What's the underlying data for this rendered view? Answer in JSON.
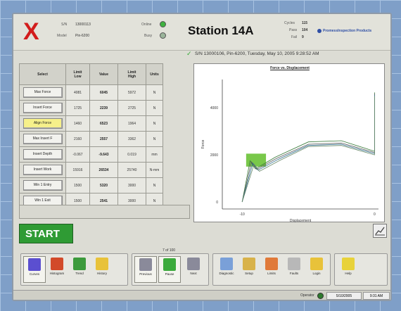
{
  "header": {
    "sn_label": "S/N",
    "sn_value": "13000113",
    "model_label": "Model",
    "model_value": "Pin-6200",
    "online_label": "Online",
    "busy_label": "Busy",
    "station": "Station 14A",
    "cycles_label": "Cycles",
    "cycles_value": "115",
    "pass_label": "Pass",
    "pass_value": "104",
    "fail_label": "Fail",
    "fail_value": "9",
    "brand": "PromessInspection Products"
  },
  "status_line": "S/N 13000106, Pin-6200, Tuesday, May 10, 2005 9:28:52 AM",
  "table": {
    "headers": {
      "select": "Select",
      "limit_low_a": "Limit",
      "limit_low_b": "Low",
      "value": "Value",
      "limit_high_a": "Limit",
      "limit_high_b": "High",
      "units": "Units"
    },
    "rows": [
      {
        "name": "Max Force",
        "low": "4081",
        "value": "6045",
        "high": "5972",
        "units": "N"
      },
      {
        "name": "Insert Force",
        "low": "1725",
        "value": "2239",
        "high": "2725",
        "units": "N"
      },
      {
        "name": "Align Force",
        "low": "1460",
        "value": "6523",
        "high": "1964",
        "units": "N"
      },
      {
        "name": "Max Insert F",
        "low": "2160",
        "value": "2557",
        "high": "3362",
        "units": "N"
      },
      {
        "name": "Insert Depth",
        "low": "-0.067",
        "value": "-9.643",
        "high": "0.019",
        "units": "mm"
      },
      {
        "name": "Insert Work",
        "low": "15916",
        "value": "26534",
        "high": "25740",
        "units": "N-mm"
      },
      {
        "name": "Win 1 Entry",
        "low": "1500",
        "value": "5320",
        "high": "3000",
        "units": "N"
      },
      {
        "name": "Win 1 Exit",
        "low": "1500",
        "value": "2541",
        "high": "3000",
        "units": "N"
      }
    ]
  },
  "chart_data": {
    "type": "line",
    "title": "Force vs. Displacement",
    "xlabel": "Displacement",
    "ylabel": "Force",
    "yticks": [
      "4000",
      "2000",
      "0"
    ],
    "xticks": [
      "-10",
      "0"
    ],
    "series": [
      {
        "points": [
          [
            -10,
            0
          ],
          [
            -9.4,
            1750
          ],
          [
            -9.0,
            1400
          ],
          [
            -7.5,
            1900
          ],
          [
            -5,
            2550
          ],
          [
            -2.5,
            2600
          ],
          [
            0,
            2150
          ],
          [
            0,
            4650
          ]
        ]
      },
      {
        "points": [
          [
            -10,
            0
          ],
          [
            -9.3,
            1700
          ],
          [
            -8.9,
            1380
          ],
          [
            -7.4,
            1850
          ],
          [
            -5,
            2450
          ],
          [
            -2.5,
            2500
          ],
          [
            0,
            2100
          ],
          [
            0,
            4600
          ]
        ]
      },
      {
        "points": [
          [
            -10,
            0
          ],
          [
            -9.2,
            1650
          ],
          [
            -8.8,
            1350
          ],
          [
            -7.3,
            1800
          ],
          [
            -5,
            2400
          ],
          [
            -2.5,
            2450
          ],
          [
            0,
            2050
          ],
          [
            0,
            4550
          ]
        ]
      },
      {
        "points": [
          [
            -10,
            0
          ],
          [
            -9.1,
            1600
          ],
          [
            -8.7,
            1300
          ],
          [
            -7.2,
            1750
          ],
          [
            -5,
            2350
          ],
          [
            -2.5,
            2400
          ],
          [
            0,
            2000
          ],
          [
            0,
            4500
          ]
        ]
      }
    ]
  },
  "start_label": "START",
  "page_indicator": "7 of 100",
  "toolbar": [
    {
      "label": "Curves",
      "icon": "curves-icon",
      "color": "#5b4fd0",
      "active": true
    },
    {
      "label": "Histogram",
      "icon": "histogram-icon",
      "color": "#d24a2a",
      "active": false
    },
    {
      "label": "Trend",
      "icon": "trend-icon",
      "color": "#3c9a3c",
      "active": false
    },
    {
      "label": "History",
      "icon": "history-icon",
      "color": "#e8c23a",
      "active": false
    },
    {
      "label": "Previous",
      "icon": "previous-icon",
      "color": "#8a8a9a",
      "active": true
    },
    {
      "label": "Pause",
      "icon": "pause-icon",
      "color": "#3caa3c",
      "active": true
    },
    {
      "label": "Next",
      "icon": "next-icon",
      "color": "#8a8a9a",
      "active": false
    },
    {
      "label": "Diagnostic",
      "icon": "diagnostic-icon",
      "color": "#7aa0d8",
      "active": false
    },
    {
      "label": "Setup",
      "icon": "setup-icon",
      "color": "#d8b24a",
      "active": false
    },
    {
      "label": "Limits",
      "icon": "limits-icon",
      "color": "#e07a3a",
      "active": false
    },
    {
      "label": "Faults",
      "icon": "faults-icon",
      "color": "#b8b8b8",
      "active": false
    },
    {
      "label": "Login",
      "icon": "login-icon",
      "color": "#e8c23a",
      "active": false
    },
    {
      "label": "Help",
      "icon": "help-icon",
      "color": "#e8d23a",
      "active": false
    }
  ],
  "footer": {
    "operator": "Operator",
    "date": "5/10/2005",
    "time": "9:31 AM"
  }
}
